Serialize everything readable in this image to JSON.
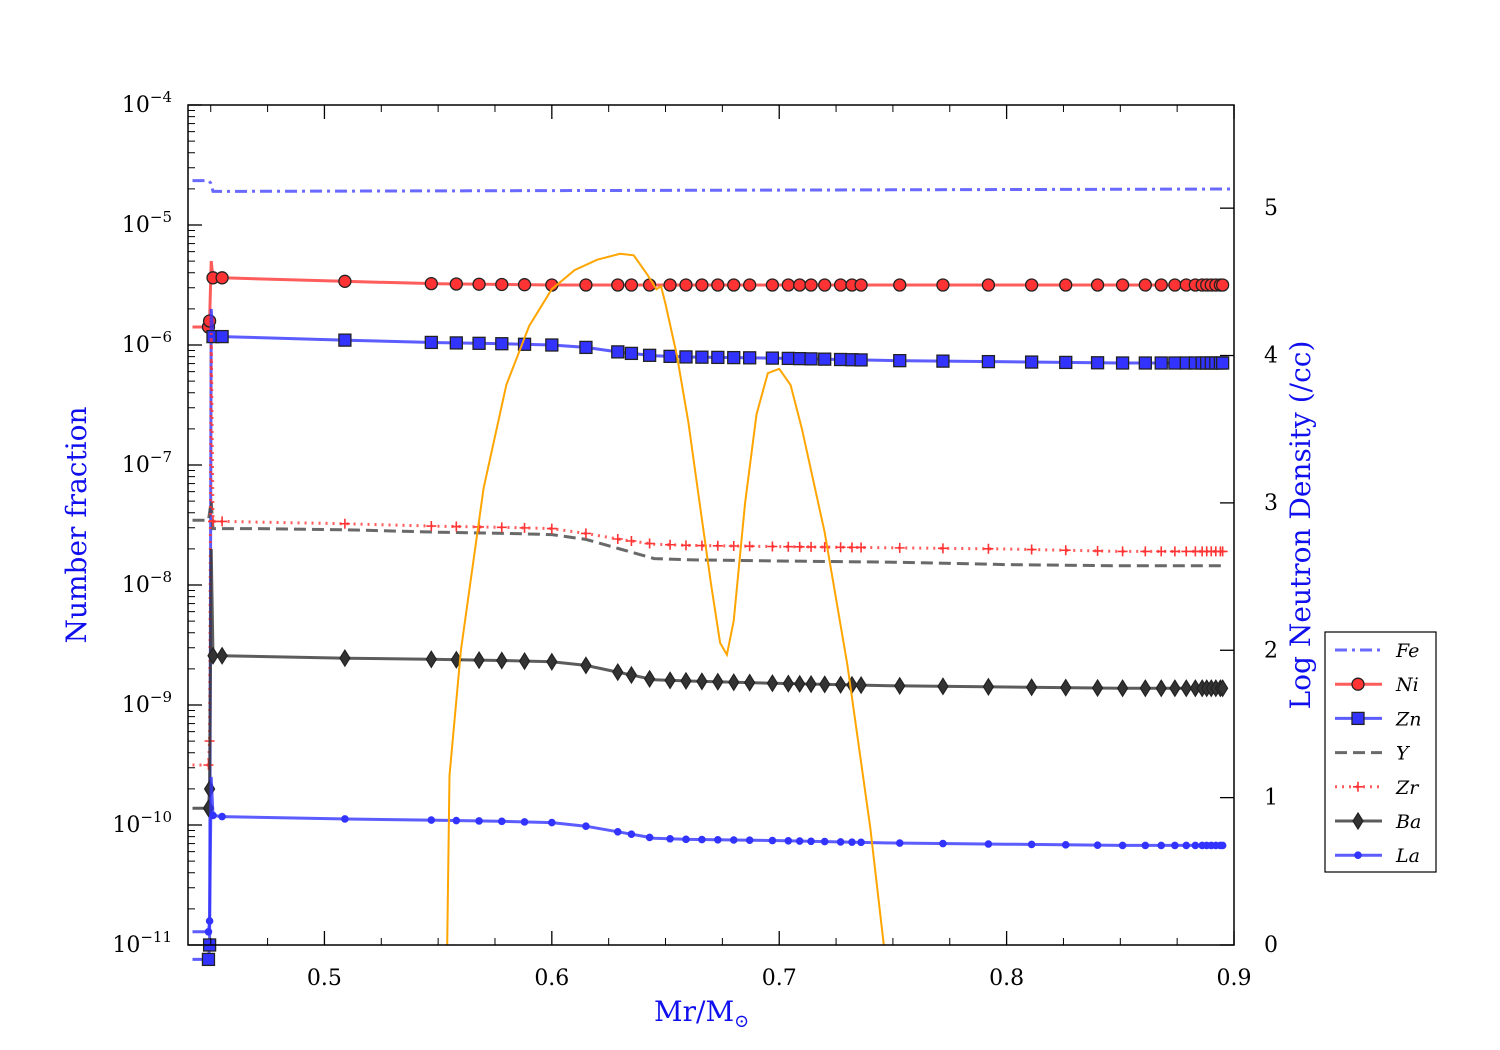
{
  "chart_data": {
    "type": "line",
    "xlabel": "Mr/M",
    "xlabel_sub": "⊙",
    "ylabel_left": "Number fraction",
    "ylabel_right": "Log Neutron Density (/cc)",
    "xlim": [
      0.44,
      0.9
    ],
    "xticks": [
      "0.5",
      "0.6",
      "0.7",
      "0.8",
      "0.9"
    ],
    "xtick_values": [
      0.5,
      0.6,
      0.7,
      0.8,
      0.9
    ],
    "ylim_left_log10": [
      -11,
      -4
    ],
    "yticks_left_base": "10",
    "yticks_left_exponents": [
      "−11",
      "−10",
      "−9",
      "−8",
      "−7",
      "−6",
      "−5",
      "−4"
    ],
    "ylim_right": [
      0,
      5.7
    ],
    "yticks_right": [
      "0",
      "1",
      "2",
      "3",
      "4",
      "5"
    ],
    "legend_position": "right",
    "series": [
      {
        "name": "Fe",
        "color": "#4444ff",
        "style": "dashdot",
        "marker": "none",
        "data": [
          [
            0.442,
            -4.63
          ],
          [
            0.449,
            -4.63
          ],
          [
            0.45,
            -4.65
          ],
          [
            0.451,
            -4.72
          ],
          [
            0.9,
            -4.7
          ]
        ]
      },
      {
        "name": "Ni",
        "color": "#ff3333",
        "style": "solid",
        "marker": "circle",
        "data": [
          [
            0.442,
            -5.85
          ],
          [
            0.449,
            -5.85
          ],
          [
            0.4495,
            -5.8
          ],
          [
            0.4502,
            -5.3
          ],
          [
            0.451,
            -5.44
          ],
          [
            0.455,
            -5.44
          ],
          [
            0.51,
            -5.47
          ],
          [
            0.55,
            -5.49
          ],
          [
            0.6,
            -5.5
          ],
          [
            0.65,
            -5.5
          ],
          [
            0.7,
            -5.5
          ],
          [
            0.75,
            -5.5
          ],
          [
            0.8,
            -5.5
          ],
          [
            0.85,
            -5.5
          ],
          [
            0.895,
            -5.5
          ]
        ],
        "markers_x": [
          0.449,
          0.4495,
          0.451,
          0.455,
          0.509,
          0.547,
          0.558,
          0.568,
          0.578,
          0.588,
          0.6,
          0.615,
          0.629,
          0.635,
          0.643,
          0.652,
          0.659,
          0.666,
          0.673,
          0.68,
          0.687,
          0.697,
          0.704,
          0.709,
          0.714,
          0.72,
          0.727,
          0.732,
          0.736,
          0.753,
          0.772,
          0.792,
          0.811,
          0.826,
          0.84,
          0.851,
          0.861,
          0.868,
          0.874,
          0.879,
          0.883,
          0.886,
          0.888,
          0.89,
          0.892,
          0.894,
          0.895
        ]
      },
      {
        "name": "Zn",
        "color": "#3333ff",
        "style": "solid",
        "marker": "square",
        "data": [
          [
            0.442,
            -11.12
          ],
          [
            0.449,
            -11.12
          ],
          [
            0.4495,
            -11.0
          ],
          [
            0.4502,
            -5.7
          ],
          [
            0.451,
            -5.93
          ],
          [
            0.455,
            -5.93
          ],
          [
            0.51,
            -5.96
          ],
          [
            0.55,
            -5.98
          ],
          [
            0.58,
            -5.99
          ],
          [
            0.6,
            -6.0
          ],
          [
            0.615,
            -6.02
          ],
          [
            0.63,
            -6.06
          ],
          [
            0.645,
            -6.09
          ],
          [
            0.66,
            -6.1
          ],
          [
            0.7,
            -6.11
          ],
          [
            0.75,
            -6.13
          ],
          [
            0.8,
            -6.14
          ],
          [
            0.85,
            -6.15
          ],
          [
            0.895,
            -6.15
          ]
        ],
        "markers_x": [
          0.449,
          0.4495,
          0.451,
          0.455,
          0.509,
          0.547,
          0.558,
          0.568,
          0.578,
          0.588,
          0.6,
          0.615,
          0.629,
          0.635,
          0.643,
          0.652,
          0.659,
          0.666,
          0.673,
          0.68,
          0.687,
          0.697,
          0.704,
          0.709,
          0.714,
          0.72,
          0.727,
          0.732,
          0.736,
          0.753,
          0.772,
          0.792,
          0.811,
          0.826,
          0.84,
          0.851,
          0.861,
          0.868,
          0.874,
          0.879,
          0.883,
          0.886,
          0.888,
          0.89,
          0.892,
          0.894,
          0.895
        ]
      },
      {
        "name": "Y",
        "color": "#444444",
        "style": "dashed",
        "marker": "none",
        "data": [
          [
            0.442,
            -7.46
          ],
          [
            0.449,
            -7.46
          ],
          [
            0.4502,
            -7.3
          ],
          [
            0.451,
            -7.53
          ],
          [
            0.47,
            -7.53
          ],
          [
            0.51,
            -7.54
          ],
          [
            0.55,
            -7.56
          ],
          [
            0.58,
            -7.57
          ],
          [
            0.6,
            -7.58
          ],
          [
            0.615,
            -7.62
          ],
          [
            0.63,
            -7.7
          ],
          [
            0.645,
            -7.78
          ],
          [
            0.66,
            -7.79
          ],
          [
            0.7,
            -7.8
          ],
          [
            0.75,
            -7.81
          ],
          [
            0.8,
            -7.83
          ],
          [
            0.85,
            -7.84
          ],
          [
            0.895,
            -7.84
          ]
        ]
      },
      {
        "name": "Zr",
        "color": "#ff3333",
        "style": "dotted",
        "marker": "plus",
        "data": [
          [
            0.442,
            -9.5
          ],
          [
            0.449,
            -9.5
          ],
          [
            0.4495,
            -9.3
          ],
          [
            0.4502,
            -5.9
          ],
          [
            0.451,
            -7.47
          ],
          [
            0.455,
            -7.47
          ],
          [
            0.51,
            -7.49
          ],
          [
            0.55,
            -7.51
          ],
          [
            0.58,
            -7.52
          ],
          [
            0.6,
            -7.53
          ],
          [
            0.615,
            -7.57
          ],
          [
            0.63,
            -7.62
          ],
          [
            0.645,
            -7.66
          ],
          [
            0.66,
            -7.67
          ],
          [
            0.7,
            -7.68
          ],
          [
            0.75,
            -7.69
          ],
          [
            0.8,
            -7.7
          ],
          [
            0.85,
            -7.72
          ],
          [
            0.895,
            -7.72
          ]
        ],
        "markers_x": [
          0.449,
          0.4495,
          0.451,
          0.455,
          0.509,
          0.547,
          0.558,
          0.568,
          0.578,
          0.588,
          0.6,
          0.615,
          0.629,
          0.635,
          0.643,
          0.652,
          0.659,
          0.666,
          0.673,
          0.68,
          0.687,
          0.697,
          0.704,
          0.709,
          0.714,
          0.72,
          0.727,
          0.732,
          0.736,
          0.753,
          0.772,
          0.792,
          0.811,
          0.826,
          0.84,
          0.851,
          0.861,
          0.868,
          0.874,
          0.879,
          0.883,
          0.886,
          0.888,
          0.89,
          0.892,
          0.894,
          0.895
        ]
      },
      {
        "name": "Ba",
        "color": "#333333",
        "style": "solid",
        "marker": "diamond",
        "data": [
          [
            0.442,
            -9.86
          ],
          [
            0.449,
            -9.86
          ],
          [
            0.4495,
            -9.7
          ],
          [
            0.4502,
            -7.7
          ],
          [
            0.451,
            -8.59
          ],
          [
            0.455,
            -8.59
          ],
          [
            0.51,
            -8.61
          ],
          [
            0.55,
            -8.62
          ],
          [
            0.58,
            -8.63
          ],
          [
            0.6,
            -8.64
          ],
          [
            0.615,
            -8.67
          ],
          [
            0.63,
            -8.73
          ],
          [
            0.645,
            -8.79
          ],
          [
            0.66,
            -8.8
          ],
          [
            0.7,
            -8.82
          ],
          [
            0.75,
            -8.84
          ],
          [
            0.8,
            -8.85
          ],
          [
            0.85,
            -8.86
          ],
          [
            0.895,
            -8.86
          ]
        ],
        "markers_x": [
          0.449,
          0.4495,
          0.451,
          0.455,
          0.509,
          0.547,
          0.558,
          0.568,
          0.578,
          0.588,
          0.6,
          0.615,
          0.629,
          0.635,
          0.643,
          0.652,
          0.659,
          0.666,
          0.673,
          0.68,
          0.687,
          0.697,
          0.704,
          0.709,
          0.714,
          0.72,
          0.727,
          0.732,
          0.736,
          0.753,
          0.772,
          0.792,
          0.811,
          0.826,
          0.84,
          0.851,
          0.861,
          0.868,
          0.874,
          0.879,
          0.883,
          0.886,
          0.888,
          0.89,
          0.892,
          0.894,
          0.895
        ]
      },
      {
        "name": "La",
        "color": "#3333ff",
        "style": "solid",
        "marker": "dot",
        "data": [
          [
            0.442,
            -10.89
          ],
          [
            0.449,
            -10.89
          ],
          [
            0.4495,
            -10.8
          ],
          [
            0.4502,
            -9.6
          ],
          [
            0.451,
            -9.92
          ],
          [
            0.455,
            -9.93
          ],
          [
            0.51,
            -9.95
          ],
          [
            0.55,
            -9.96
          ],
          [
            0.58,
            -9.97
          ],
          [
            0.6,
            -9.98
          ],
          [
            0.615,
            -10.01
          ],
          [
            0.63,
            -10.06
          ],
          [
            0.645,
            -10.11
          ],
          [
            0.66,
            -10.12
          ],
          [
            0.7,
            -10.13
          ],
          [
            0.75,
            -10.15
          ],
          [
            0.8,
            -10.16
          ],
          [
            0.85,
            -10.17
          ],
          [
            0.895,
            -10.17
          ]
        ],
        "markers_x": [
          0.449,
          0.4495,
          0.451,
          0.455,
          0.509,
          0.547,
          0.558,
          0.568,
          0.578,
          0.588,
          0.6,
          0.615,
          0.629,
          0.635,
          0.643,
          0.652,
          0.659,
          0.666,
          0.673,
          0.68,
          0.687,
          0.697,
          0.704,
          0.709,
          0.714,
          0.72,
          0.727,
          0.732,
          0.736,
          0.753,
          0.772,
          0.792,
          0.811,
          0.826,
          0.84,
          0.851,
          0.861,
          0.868,
          0.874,
          0.879,
          0.883,
          0.886,
          0.888,
          0.89,
          0.892,
          0.894,
          0.895
        ]
      }
    ],
    "neutron_density": {
      "color": "#ffa500",
      "axis": "right",
      "data": [
        [
          0.554,
          0.0
        ],
        [
          0.555,
          1.15
        ],
        [
          0.56,
          2.0
        ],
        [
          0.57,
          3.1
        ],
        [
          0.58,
          3.8
        ],
        [
          0.59,
          4.2
        ],
        [
          0.6,
          4.45
        ],
        [
          0.61,
          4.58
        ],
        [
          0.62,
          4.65
        ],
        [
          0.63,
          4.69
        ],
        [
          0.636,
          4.68
        ],
        [
          0.642,
          4.55
        ],
        [
          0.646,
          4.45
        ],
        [
          0.648,
          4.47
        ],
        [
          0.65,
          4.35
        ],
        [
          0.655,
          4.0
        ],
        [
          0.66,
          3.55
        ],
        [
          0.665,
          3.0
        ],
        [
          0.67,
          2.45
        ],
        [
          0.674,
          2.05
        ],
        [
          0.677,
          1.97
        ],
        [
          0.68,
          2.2
        ],
        [
          0.685,
          3.0
        ],
        [
          0.69,
          3.6
        ],
        [
          0.695,
          3.88
        ],
        [
          0.7,
          3.91
        ],
        [
          0.705,
          3.8
        ],
        [
          0.71,
          3.5
        ],
        [
          0.72,
          2.8
        ],
        [
          0.73,
          1.9
        ],
        [
          0.74,
          0.8
        ],
        [
          0.746,
          0.0
        ]
      ]
    }
  }
}
